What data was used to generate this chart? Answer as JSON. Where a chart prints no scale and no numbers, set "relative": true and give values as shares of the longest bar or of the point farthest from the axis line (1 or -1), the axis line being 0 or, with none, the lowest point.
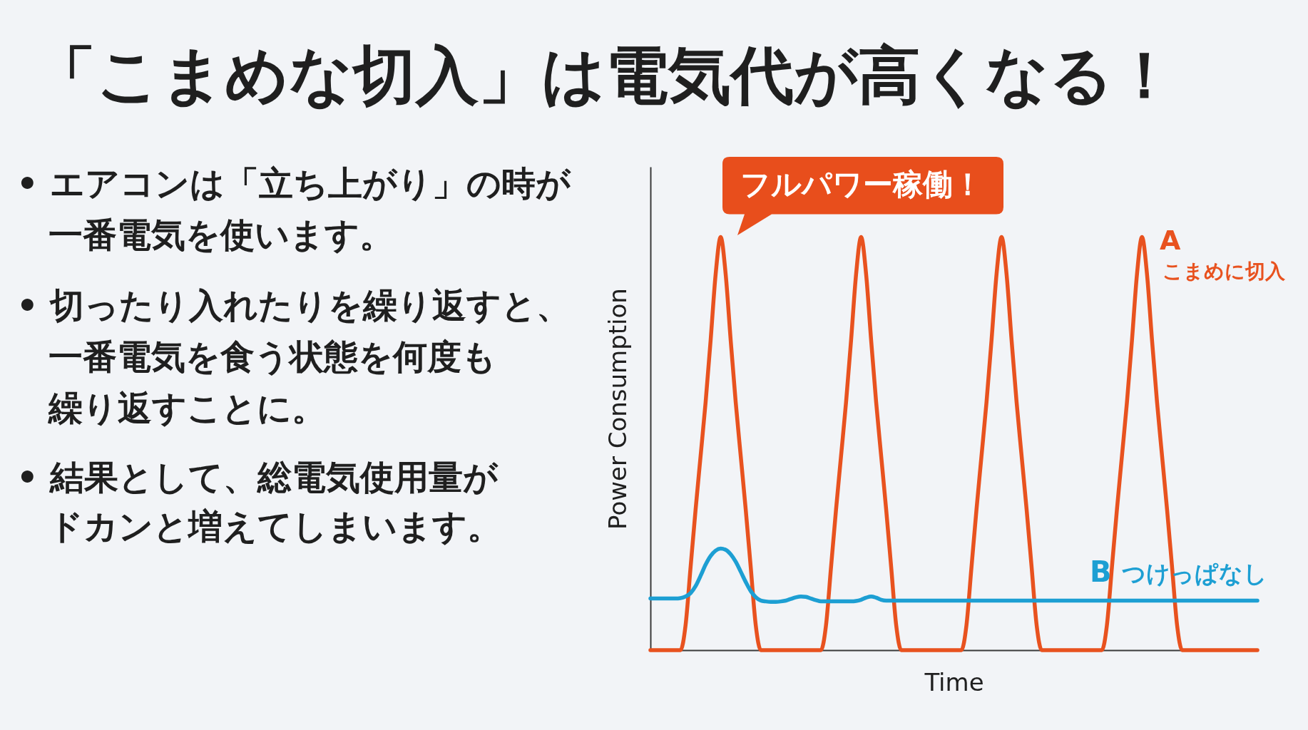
{
  "chart_data": {
    "type": "line",
    "title": "「こまめな切入」は電気代が高くなる！",
    "xlabel": "Time",
    "ylabel": "Power Consumption",
    "relative": true,
    "categories": [
      null,
      null,
      null,
      null,
      null,
      null,
      null,
      null,
      null,
      null,
      null,
      null,
      null,
      null,
      null,
      null,
      null,
      null,
      null,
      null,
      null,
      null,
      null,
      null,
      null,
      null,
      null,
      null,
      null,
      null,
      null,
      null,
      null,
      null,
      null,
      null,
      null,
      null,
      null,
      null,
      null,
      null,
      null,
      null,
      null,
      null,
      null,
      null,
      null,
      null,
      null,
      null,
      null,
      null,
      null,
      null,
      null,
      null,
      null,
      null,
      null,
      null,
      null,
      null,
      null,
      null,
      null,
      null,
      null,
      null,
      null,
      null,
      null,
      null,
      null,
      null,
      null,
      null,
      null,
      null,
      null,
      null,
      null,
      null,
      null,
      null,
      null,
      null,
      null,
      null,
      null,
      null,
      null,
      null,
      null,
      null,
      null,
      null,
      null,
      null,
      null,
      null,
      null,
      null,
      null,
      null,
      null,
      null,
      null,
      null,
      null,
      null,
      null,
      null,
      null,
      null,
      null,
      null,
      null,
      null,
      null,
      null
    ],
    "series": [
      {
        "name": "A こまめに切入",
        "color": "#e8521f",
        "values": [
          0,
          0,
          0,
          0,
          0,
          0,
          0,
          0.06,
          0.2,
          0.34,
          0.47,
          0.6,
          0.75,
          0.91,
          1,
          0.91,
          0.75,
          0.6,
          0.47,
          0.34,
          0.2,
          0.06,
          0,
          0,
          0,
          0,
          0,
          0,
          0,
          0,
          0,
          0,
          0,
          0,
          0,
          0.06,
          0.2,
          0.34,
          0.47,
          0.6,
          0.75,
          0.91,
          1,
          0.91,
          0.75,
          0.6,
          0.47,
          0.34,
          0.2,
          0.06,
          0,
          0,
          0,
          0,
          0,
          0,
          0,
          0,
          0,
          0,
          0,
          0,
          0,
          0.06,
          0.2,
          0.34,
          0.47,
          0.6,
          0.75,
          0.91,
          1,
          0.91,
          0.75,
          0.6,
          0.47,
          0.34,
          0.2,
          0.06,
          0,
          0,
          0,
          0,
          0,
          0,
          0,
          0,
          0,
          0,
          0,
          0,
          0,
          0.06,
          0.2,
          0.34,
          0.47,
          0.6,
          0.75,
          0.91,
          1,
          0.91,
          0.75,
          0.6,
          0.47,
          0.34,
          0.2,
          0.06,
          0,
          0,
          0,
          0,
          0,
          0,
          0,
          0,
          0,
          0,
          0,
          0,
          0,
          0,
          0,
          0
        ]
      },
      {
        "name": "B つけっぱなし",
        "color": "#1d9fd3",
        "values": [
          0.125,
          0.125,
          0.125,
          0.125,
          0.125,
          0.125,
          0.126,
          0.13,
          0.138,
          0.155,
          0.18,
          0.207,
          0.228,
          0.241,
          0.246,
          0.243,
          0.232,
          0.214,
          0.19,
          0.165,
          0.143,
          0.128,
          0.12,
          0.118,
          0.117,
          0.117,
          0.118,
          0.12,
          0.124,
          0.128,
          0.13,
          0.129,
          0.125,
          0.121,
          0.118,
          0.118,
          0.118,
          0.118,
          0.118,
          0.118,
          0.118,
          0.119,
          0.122,
          0.127,
          0.13,
          0.127,
          0.122,
          0.12,
          0.12,
          0.12,
          0.12,
          0.12,
          0.12,
          0.12,
          0.12,
          0.12,
          0.12,
          0.12,
          0.12,
          0.12,
          0.12,
          0.12,
          0.12,
          0.12,
          0.12,
          0.12,
          0.12,
          0.12,
          0.12,
          0.12,
          0.12,
          0.12,
          0.12,
          0.12,
          0.12,
          0.12,
          0.12,
          0.12,
          0.12,
          0.12,
          0.12,
          0.12,
          0.12,
          0.12,
          0.12,
          0.12,
          0.12,
          0.12,
          0.12,
          0.12,
          0.12,
          0.12,
          0.12,
          0.12,
          0.12,
          0.12,
          0.12,
          0.12,
          0.12,
          0.12,
          0.12,
          0.12,
          0.12,
          0.12,
          0.12,
          0.12,
          0.12,
          0.12,
          0.12,
          0.12,
          0.12,
          0.12,
          0.12,
          0.12,
          0.12,
          0.12,
          0.12,
          0.12,
          0.12,
          0.12,
          0.12,
          0.12
        ]
      }
    ],
    "annotations": [
      "• エアコンは「立ち上がり」の時が",
      "一番電気を使います。",
      "• 切ったり入れたりを繰り返すと、",
      "一番電気を食う状態を何度も",
      "繰り返すことに。",
      "• 結果として、総電気使用量が",
      "ドカンと増えてしまいます。",
      {
        "text": "フルパワー稼働！",
        "y": 1
      }
    ]
  }
}
